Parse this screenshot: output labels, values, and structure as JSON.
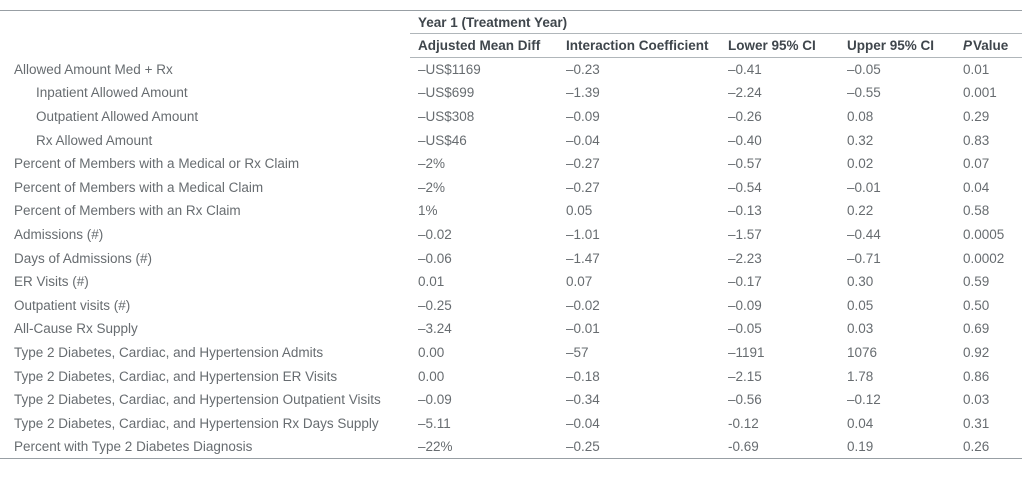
{
  "colors": {
    "header-text": "#3f464c",
    "body-text": "#676c70",
    "line-outer": "#989fa4",
    "line-inner": "#b0b6ba",
    "background": "#ffffff"
  },
  "table": {
    "group_header": "Year 1 (Treatment Year)",
    "columns": [
      "Adjusted Mean Diff",
      "Interaction Coefficient",
      "Lower 95% CI",
      "Upper 95% CI"
    ],
    "pvalue": {
      "italic": "P",
      "rest": "Value"
    },
    "rows": [
      {
        "label": "Allowed Amount Med + Rx",
        "indent": false,
        "values": [
          "–US$1169",
          "–0.23",
          "–0.41",
          "–0.05",
          "0.01"
        ]
      },
      {
        "label": "Inpatient Allowed Amount",
        "indent": true,
        "values": [
          "–US$699",
          "–1.39",
          "–2.24",
          "–0.55",
          "0.001"
        ]
      },
      {
        "label": "Outpatient Allowed Amount",
        "indent": true,
        "values": [
          "–US$308",
          "–0.09",
          "–0.26",
          "0.08",
          "0.29"
        ]
      },
      {
        "label": "Rx Allowed Amount",
        "indent": true,
        "values": [
          "–US$46",
          "–0.04",
          "–0.40",
          "0.32",
          "0.83"
        ]
      },
      {
        "label": "Percent of Members with a Medical or Rx Claim",
        "indent": false,
        "values": [
          "–2%",
          "–0.27",
          "–0.57",
          "0.02",
          "0.07"
        ]
      },
      {
        "label": "Percent of Members with a Medical Claim",
        "indent": false,
        "values": [
          "–2%",
          "–0.27",
          "–0.54",
          "–0.01",
          "0.04"
        ]
      },
      {
        "label": "Percent of Members with an Rx Claim",
        "indent": false,
        "values": [
          "1%",
          "0.05",
          "–0.13",
          "0.22",
          "0.58"
        ]
      },
      {
        "label": "Admissions (#)",
        "indent": false,
        "values": [
          "–0.02",
          "–1.01",
          "–1.57",
          "–0.44",
          "0.0005"
        ]
      },
      {
        "label": "Days of Admissions (#)",
        "indent": false,
        "values": [
          "–0.06",
          "–1.47",
          "–2.23",
          "–0.71",
          "0.0002"
        ]
      },
      {
        "label": "ER Visits (#)",
        "indent": false,
        "values": [
          "0.01",
          "0.07",
          "–0.17",
          "0.30",
          "0.59"
        ]
      },
      {
        "label": "Outpatient visits (#)",
        "indent": false,
        "values": [
          "–0.25",
          "–0.02",
          "–0.09",
          "0.05",
          "0.50"
        ]
      },
      {
        "label": "All-Cause Rx Supply",
        "indent": false,
        "values": [
          "–3.24",
          "–0.01",
          "–0.05",
          "0.03",
          "0.69"
        ]
      },
      {
        "label": "Type 2 Diabetes, Cardiac, and Hypertension Admits",
        "indent": false,
        "values": [
          "0.00",
          "–57",
          "–1191",
          "1076",
          "0.92"
        ]
      },
      {
        "label": "Type 2 Diabetes, Cardiac, and Hypertension ER Visits",
        "indent": false,
        "values": [
          "0.00",
          "–0.18",
          "–2.15",
          "1.78",
          "0.86"
        ]
      },
      {
        "label": "Type 2 Diabetes, Cardiac, and Hypertension Outpatient Visits",
        "indent": false,
        "values": [
          "–0.09",
          "–0.34",
          "–0.56",
          "–0.12",
          "0.03"
        ]
      },
      {
        "label": "Type 2 Diabetes, Cardiac, and Hypertension Rx Days Supply",
        "indent": false,
        "values": [
          "–5.11",
          "–0.04",
          "-0.12",
          "0.04",
          "0.31"
        ]
      },
      {
        "label": "Percent with Type 2 Diabetes Diagnosis",
        "indent": false,
        "values": [
          "–22%",
          "–0.25",
          "-0.69",
          "0.19",
          "0.26"
        ]
      }
    ]
  }
}
